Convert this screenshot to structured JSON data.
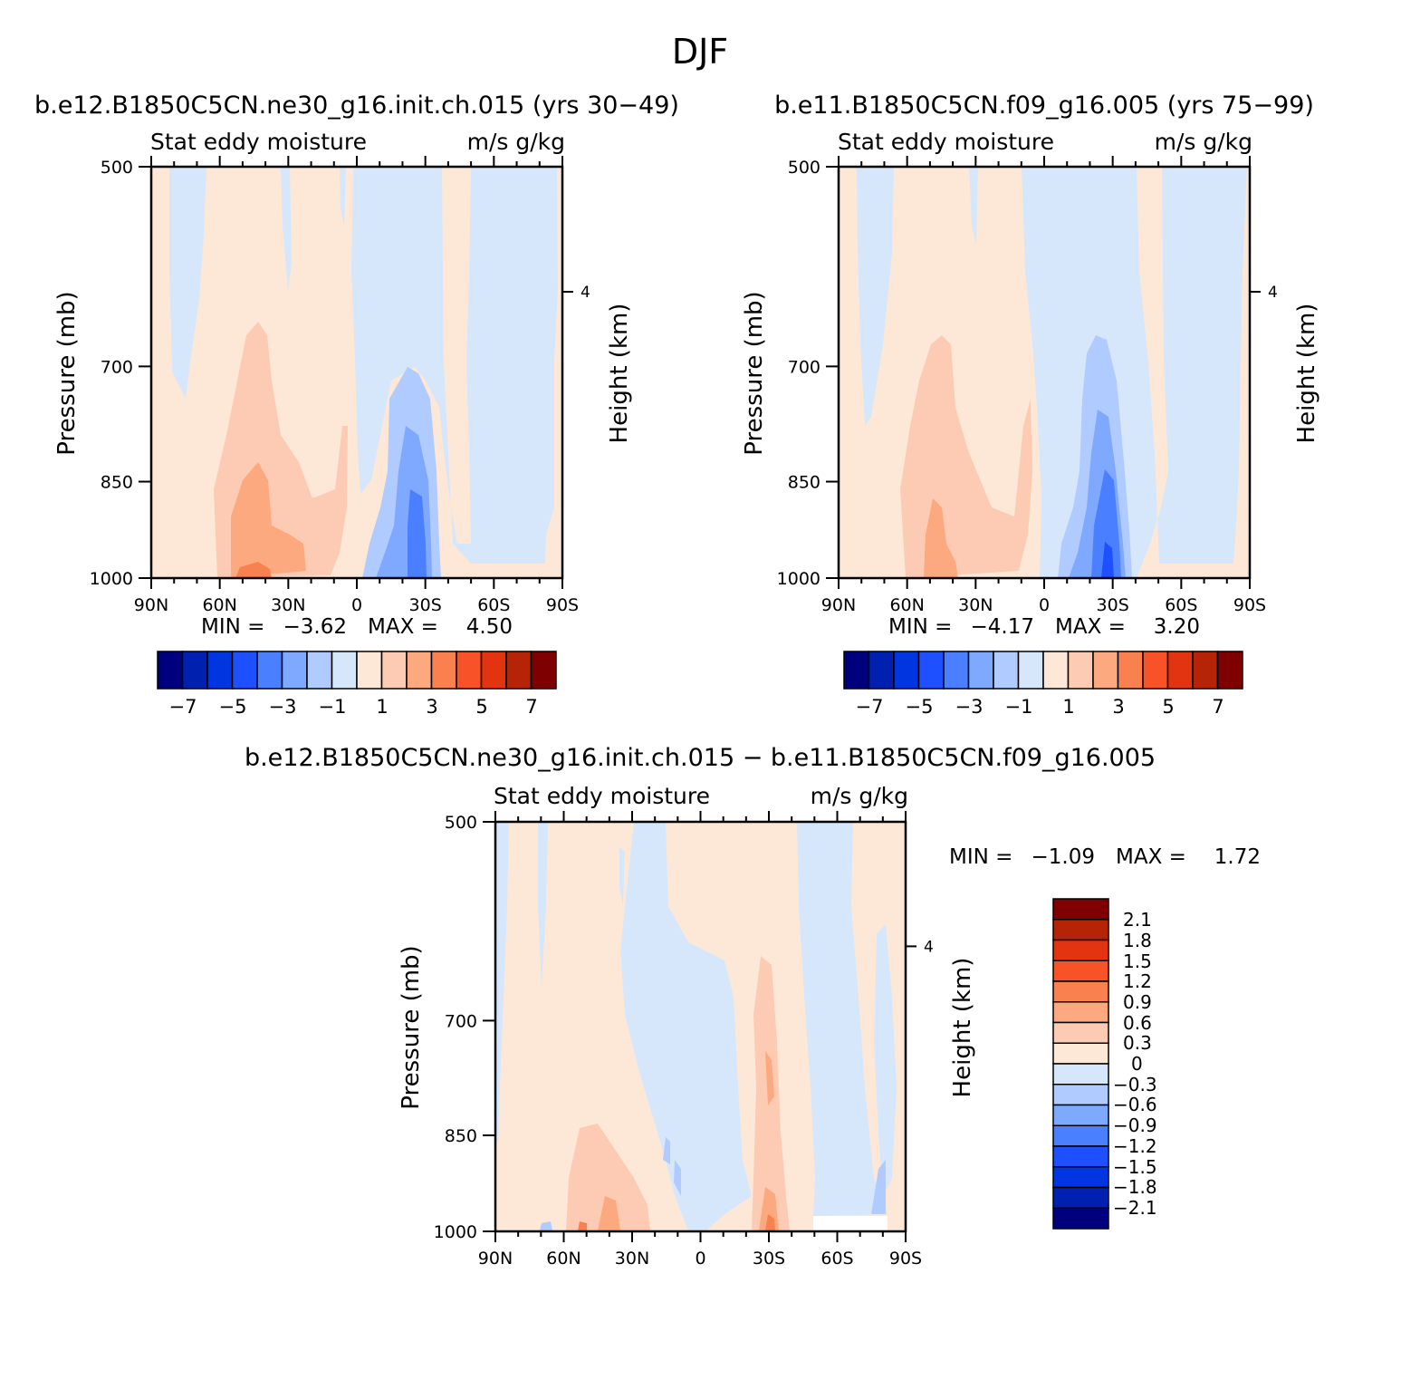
{
  "figure": {
    "title": "DJF"
  },
  "colors": {
    "main_palette": [
      "#00007f",
      "#0020b0",
      "#0035e0",
      "#1f50ff",
      "#4a80ff",
      "#7fa8ff",
      "#b0cbff",
      "#d6e7fb",
      "#fde8d8",
      "#fdcbb3",
      "#fca97f",
      "#f98150",
      "#f75228",
      "#e23410",
      "#b52406",
      "#7f0000"
    ],
    "diff_palette": [
      "#00007f",
      "#0020b0",
      "#0035e0",
      "#1f50ff",
      "#4a80ff",
      "#7fa8ff",
      "#b0cbff",
      "#d6e7fb",
      "#fde8d8",
      "#fdcbb3",
      "#fca97f",
      "#f98150",
      "#f75228",
      "#e23410",
      "#b52406",
      "#7f0000"
    ]
  },
  "chart_data": [
    {
      "type": "heatmap",
      "id": "p1",
      "title": "b.e12.B1850C5CN.ne30_g16.init.ch.015 (yrs 30−49)",
      "left_label": "Stat eddy moisture",
      "right_label": "m/s g/kg",
      "ylabel": "Pressure (mb)",
      "y2label": "Height (km)",
      "x_ticks": [
        "90N",
        "60N",
        "30N",
        "0",
        "30S",
        "60S",
        "90S"
      ],
      "y_ticks": [
        "500",
        "700",
        "850",
        "1000"
      ],
      "y2_ticks": [
        "4"
      ],
      "stats": {
        "min_label": "MIN =",
        "min": "−3.62",
        "max_label": "MAX =",
        "max": "4.50"
      },
      "colorbar_labels": [
        "−7",
        "−5",
        "−3",
        "−1",
        "1",
        "3",
        "5",
        "7"
      ],
      "features": [
        {
          "lat": 45,
          "p": 950,
          "value": 4.5
        },
        {
          "lat": 50,
          "p": 870,
          "value": 3.5
        },
        {
          "lat": 40,
          "p": 760,
          "value": 2.0
        },
        {
          "lat": -26,
          "p": 930,
          "value": -3.6
        },
        {
          "lat": -26,
          "p": 780,
          "value": -1.5
        },
        {
          "lat": 75,
          "p": 550,
          "value": -0.5
        },
        {
          "lat": -60,
          "p": 600,
          "value": -0.5
        }
      ]
    },
    {
      "type": "heatmap",
      "id": "p2",
      "title": "b.e11.B1850C5CN.f09_g16.005 (yrs 75−99)",
      "left_label": "Stat eddy moisture",
      "right_label": "m/s g/kg",
      "ylabel": "Pressure (mb)",
      "y2label": "Height (km)",
      "x_ticks": [
        "90N",
        "60N",
        "30N",
        "0",
        "30S",
        "60S",
        "90S"
      ],
      "y_ticks": [
        "500",
        "700",
        "850",
        "1000"
      ],
      "y2_ticks": [
        "4"
      ],
      "stats": {
        "min_label": "MIN =",
        "min": "−4.17",
        "max_label": "MAX =",
        "max": "3.20"
      },
      "colorbar_labels": [
        "−7",
        "−5",
        "−3",
        "−1",
        "1",
        "3",
        "5",
        "7"
      ],
      "features": [
        {
          "lat": 40,
          "p": 900,
          "value": 3.2
        },
        {
          "lat": 40,
          "p": 760,
          "value": 1.5
        },
        {
          "lat": -26,
          "p": 930,
          "value": -4.2
        },
        {
          "lat": -26,
          "p": 760,
          "value": -2.0
        },
        {
          "lat": -10,
          "p": 620,
          "value": -0.5
        }
      ]
    },
    {
      "type": "heatmap",
      "id": "p3",
      "title": "b.e12.B1850C5CN.ne30_g16.init.ch.015 − b.e11.B1850C5CN.f09_g16.005",
      "left_label": "Stat eddy moisture",
      "right_label": "m/s g/kg",
      "ylabel": "Pressure (mb)",
      "y2label": "Height (km)",
      "x_ticks": [
        "90N",
        "60N",
        "30N",
        "0",
        "30S",
        "60S",
        "90S"
      ],
      "y_ticks": [
        "500",
        "700",
        "850",
        "1000"
      ],
      "y2_ticks": [
        "4"
      ],
      "stats": {
        "min_label": "MIN =",
        "min": "−1.09",
        "max_label": "MAX =",
        "max": "1.72"
      },
      "colorbar_labels": [
        "2.1",
        "1.8",
        "1.5",
        "1.2",
        "0.9",
        "0.6",
        "0.3",
        "0",
        "−0.3",
        "−0.6",
        "−0.9",
        "−1.2",
        "−1.5",
        "−1.8",
        "−2.1"
      ],
      "features": [
        {
          "lat": -30,
          "p": 960,
          "value": 1.7
        },
        {
          "lat": -30,
          "p": 780,
          "value": 0.6
        },
        {
          "lat": 42,
          "p": 950,
          "value": 1.2
        },
        {
          "lat": 10,
          "p": 800,
          "value": -0.3
        },
        {
          "lat": -65,
          "p": 700,
          "value": -0.3
        },
        {
          "lat": 60,
          "p": 995,
          "value": -1.09
        }
      ]
    }
  ]
}
